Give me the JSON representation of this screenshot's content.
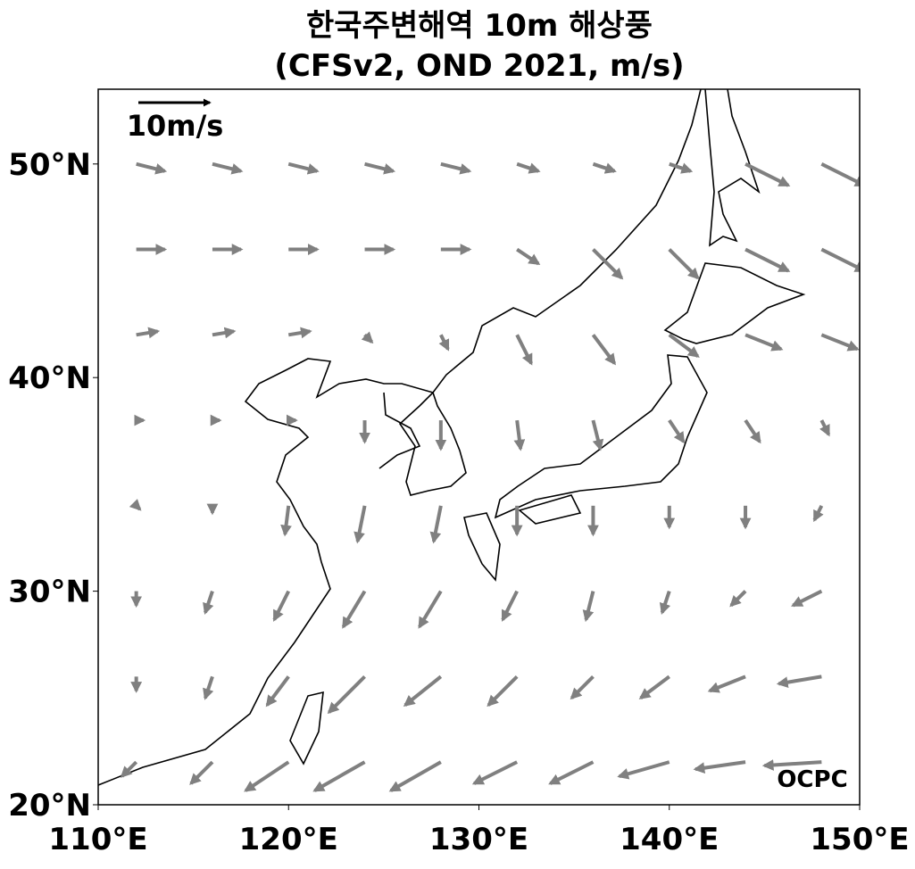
{
  "chart_data": {
    "type": "quiver",
    "title": "한국주변해역 10m 해상풍",
    "subtitle": "(CFSv2, OND 2021, m/s)",
    "xlim": [
      110,
      150
    ],
    "ylim": [
      20,
      53.5
    ],
    "xticks": [
      {
        "value": 110,
        "label": "110°E"
      },
      {
        "value": 120,
        "label": "120°E"
      },
      {
        "value": 130,
        "label": "130°E"
      },
      {
        "value": 140,
        "label": "140°E"
      },
      {
        "value": 150,
        "label": "150°E"
      }
    ],
    "yticks": [
      {
        "value": 20,
        "label": "20°N"
      },
      {
        "value": 30,
        "label": "30°N"
      },
      {
        "value": 40,
        "label": "40°N"
      },
      {
        "value": 50,
        "label": "50°N"
      }
    ],
    "color": "#808080",
    "reference_speed": 10,
    "reference_label": "10m/s",
    "logo": "OCPC",
    "lons": [
      112,
      116,
      120,
      124,
      128,
      132,
      136,
      140,
      144,
      148
    ],
    "lats": [
      50,
      46,
      42,
      38,
      34,
      30,
      26,
      22
    ],
    "u": [
      [
        4,
        4,
        4,
        4,
        4,
        3,
        3,
        3,
        6,
        6
      ],
      [
        4,
        4,
        4,
        4,
        4,
        3,
        4,
        4,
        6,
        6
      ],
      [
        3,
        3,
        3,
        1,
        1,
        2,
        3,
        4,
        5,
        5
      ],
      [
        1,
        1,
        1,
        0,
        0,
        0.5,
        1,
        2,
        2,
        1
      ],
      [
        0.5,
        0,
        -0.5,
        -1,
        -1,
        0,
        0,
        0,
        0,
        -1
      ],
      [
        0,
        -1,
        -2,
        -3,
        -3,
        -2,
        -1,
        -1,
        -2,
        -4
      ],
      [
        0,
        -1,
        -3,
        -5,
        -5,
        -4,
        -3,
        -4,
        -5,
        -6
      ],
      [
        -2,
        -3,
        -6,
        -7,
        -7,
        -6,
        -6,
        -7,
        -7,
        -8
      ]
    ],
    "v": [
      [
        -1,
        -1,
        -1,
        -1,
        -1,
        -1,
        -1,
        -1,
        -3,
        -3
      ],
      [
        0,
        0,
        0,
        0,
        0,
        -2,
        -4,
        -4,
        -3,
        -3
      ],
      [
        0.5,
        0.5,
        0.5,
        -1,
        -2,
        -4,
        -4,
        -3,
        -2,
        -2
      ],
      [
        0,
        0,
        0,
        -3,
        -4,
        -4,
        -4,
        -3,
        -3,
        -2
      ],
      [
        -0.5,
        -1,
        -4,
        -5,
        -5,
        -4,
        -4,
        -3,
        -3,
        -2
      ],
      [
        -2,
        -3,
        -4,
        -5,
        -5,
        -4,
        -4,
        -3,
        -2,
        -2
      ],
      [
        -2,
        -3,
        -4,
        -5,
        -4,
        -4,
        -3,
        -3,
        -2,
        -1
      ],
      [
        -2,
        -3,
        -4,
        -4,
        -4,
        -3,
        -3,
        -2,
        -1,
        -0.5
      ]
    ]
  }
}
